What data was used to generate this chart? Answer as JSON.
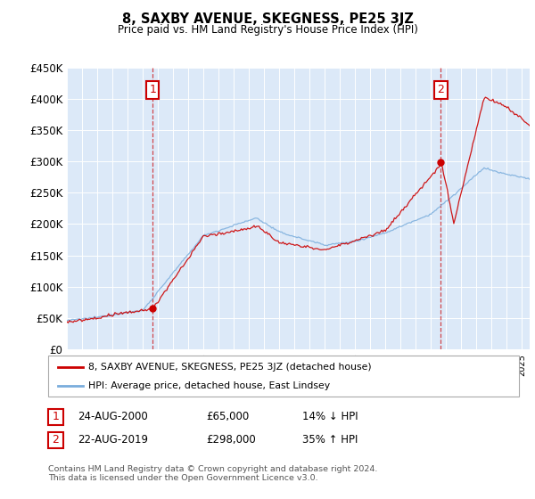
{
  "title": "8, SAXBY AVENUE, SKEGNESS, PE25 3JZ",
  "subtitle": "Price paid vs. HM Land Registry's House Price Index (HPI)",
  "legend_line1": "8, SAXBY AVENUE, SKEGNESS, PE25 3JZ (detached house)",
  "legend_line2": "HPI: Average price, detached house, East Lindsey",
  "annotation1_label": "1",
  "annotation1_date": "24-AUG-2000",
  "annotation1_price": "£65,000",
  "annotation1_hpi": "14% ↓ HPI",
  "annotation2_label": "2",
  "annotation2_date": "22-AUG-2019",
  "annotation2_price": "£298,000",
  "annotation2_hpi": "35% ↑ HPI",
  "footer": "Contains HM Land Registry data © Crown copyright and database right 2024.\nThis data is licensed under the Open Government Licence v3.0.",
  "ylim": [
    0,
    450000
  ],
  "yticks": [
    0,
    50000,
    100000,
    150000,
    200000,
    250000,
    300000,
    350000,
    400000,
    450000
  ],
  "ytick_labels": [
    "£0",
    "£50K",
    "£100K",
    "£150K",
    "£200K",
    "£250K",
    "£300K",
    "£350K",
    "£400K",
    "£450K"
  ],
  "plot_bg_color": "#dce9f8",
  "fig_bg_color": "#ffffff",
  "grid_color": "#ffffff",
  "red_color": "#cc0000",
  "blue_color": "#7aaddc",
  "sale1_year": 2000.65,
  "sale1_price": 65000,
  "sale2_year": 2019.65,
  "sale2_price": 298000,
  "xmin": 1995,
  "xmax": 2025.5
}
